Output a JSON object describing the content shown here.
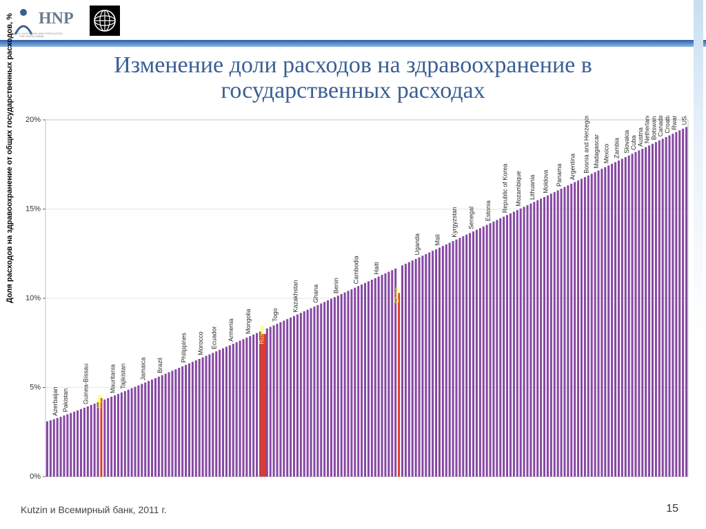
{
  "title_line1": "Изменение доли расходов на здравоохранение в",
  "title_line2": "государственных расходах",
  "yaxis_label": "Доля расходов на здравоохранение от общих государственных расходов, %",
  "source": "Kutzin и Всемирный банк, 2011 г.",
  "page": "15",
  "chart": {
    "type": "bar",
    "ylim": [
      0,
      20
    ],
    "ytick_step": 5,
    "ytick_labels": [
      "0%",
      "5%",
      "10%",
      "15%",
      "20%"
    ],
    "plot_bg": "#ffffff",
    "grid_color": "#c9c9c9",
    "bar_color": "#8648a3",
    "highlight_color": "#e03a2a",
    "highlight_text_color": "#ffff00",
    "label_font_size": 9,
    "label_color": "#2a2a2a",
    "n_bars": 190,
    "y_start": 3.1,
    "y_end": 19.6,
    "highlights": [
      {
        "i": 16,
        "label": "India",
        "y": 4.4
      },
      {
        "i": 64,
        "label": "Russia",
        "y": 8.0,
        "wide": true
      },
      {
        "i": 104,
        "label": "China",
        "y": 10.3
      }
    ],
    "labels": [
      {
        "i": 3,
        "label": "Azerbaijan"
      },
      {
        "i": 6,
        "label": "Pakistan"
      },
      {
        "i": 12,
        "label": "Guinea-Bissau"
      },
      {
        "i": 20,
        "label": "Mauritania"
      },
      {
        "i": 23,
        "label": "Tajikistan"
      },
      {
        "i": 29,
        "label": "Jamaica"
      },
      {
        "i": 34,
        "label": "Brazil"
      },
      {
        "i": 41,
        "label": "Philippines"
      },
      {
        "i": 46,
        "label": "Morocco"
      },
      {
        "i": 50,
        "label": "Ecuador"
      },
      {
        "i": 55,
        "label": "Armenia"
      },
      {
        "i": 60,
        "label": "Mongolia"
      },
      {
        "i": 68,
        "label": "Togo"
      },
      {
        "i": 74,
        "label": "Kazakhstan"
      },
      {
        "i": 80,
        "label": "Ghana"
      },
      {
        "i": 86,
        "label": "Benin"
      },
      {
        "i": 92,
        "label": "Cambodia"
      },
      {
        "i": 98,
        "label": "Haiti"
      },
      {
        "i": 110,
        "label": "Uganda"
      },
      {
        "i": 116,
        "label": "Mali"
      },
      {
        "i": 121,
        "label": "Kyrgyzstan"
      },
      {
        "i": 126,
        "label": "Senegal"
      },
      {
        "i": 131,
        "label": "Estonia"
      },
      {
        "i": 136,
        "label": "Republic of Korea"
      },
      {
        "i": 140,
        "label": "Mozambique"
      },
      {
        "i": 144,
        "label": "Lithuania"
      },
      {
        "i": 148,
        "label": "Moldova"
      },
      {
        "i": 152,
        "label": "Panama"
      },
      {
        "i": 156,
        "label": "Argentina"
      },
      {
        "i": 160,
        "label": "Bosnia and Herzegovina"
      },
      {
        "i": 163,
        "label": "Madagascar"
      },
      {
        "i": 166,
        "label": "Mexico"
      },
      {
        "i": 169,
        "label": "Zambia"
      },
      {
        "i": 172,
        "label": "Slovakia"
      },
      {
        "i": 174,
        "label": "Cuba"
      },
      {
        "i": 176,
        "label": "Austria"
      },
      {
        "i": 178,
        "label": "Netherlands"
      },
      {
        "i": 180,
        "label": "Botswana"
      },
      {
        "i": 182,
        "label": "Canada"
      },
      {
        "i": 184,
        "label": "Croatia"
      },
      {
        "i": 186,
        "label": "Rwanda"
      },
      {
        "i": 189,
        "label": "USA"
      }
    ]
  }
}
